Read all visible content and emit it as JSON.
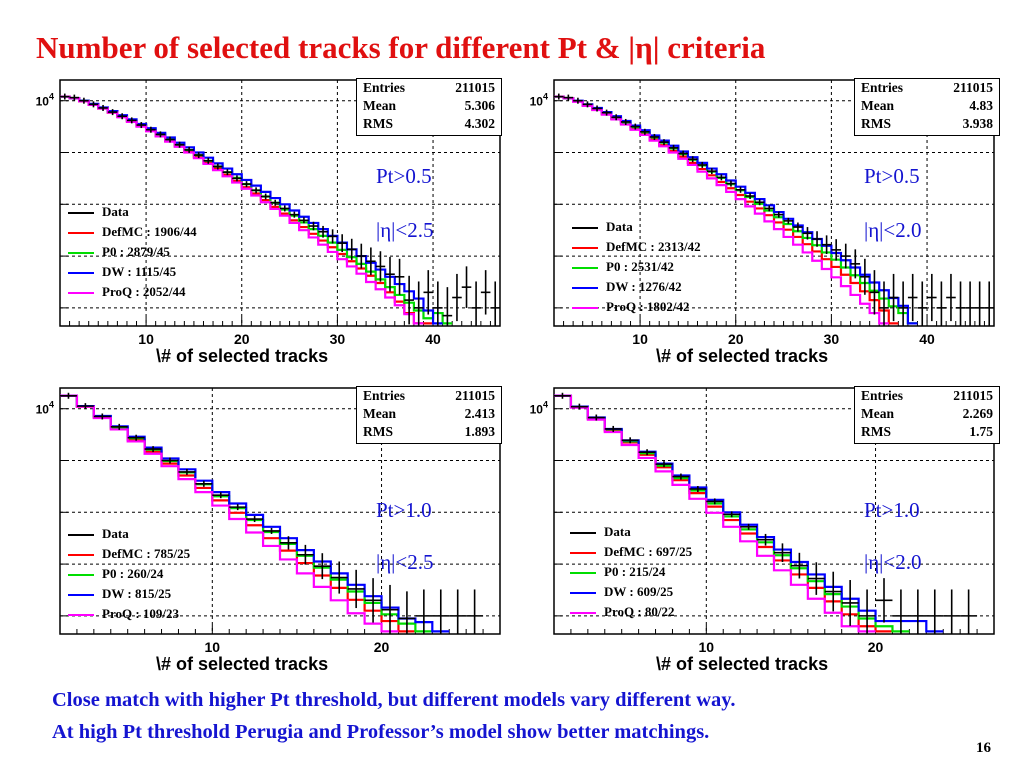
{
  "title": "Number of selected tracks for different Pt & |η| criteria",
  "footer_lines": [
    "Close match with higher Pt threshold, but different models vary different way.",
    "At high Pt threshold Perugia and Professor’s model show better matchings."
  ],
  "page_number": "16",
  "colors": {
    "Data": "#000000",
    "DefMC": "#ff0000",
    "P0": "#00dd00",
    "DW": "#0000ff",
    "ProQ": "#ff00ff",
    "cut_text": "#1414d0",
    "title": "#e01010"
  },
  "chart_data": [
    {
      "type": "step",
      "xlabel": "\\# of selected tracks",
      "ylabel_tick": "10",
      "ylabel_tick_exp": "4",
      "xlim": [
        1,
        47
      ],
      "xticks": [
        10,
        20,
        30,
        40
      ],
      "stats": {
        "entries_label": "Entries",
        "entries": "211015",
        "mean_label": "Mean",
        "mean": "5.306",
        "rms_label": "RMS",
        "rms": "4.302"
      },
      "cuts": [
        "Pt>0.5",
        "|η|<2.5"
      ],
      "legend": [
        {
          "name": "Data",
          "label": "Data"
        },
        {
          "name": "DefMC",
          "label": "DefMC : 1906/44"
        },
        {
          "name": "P0",
          "label": "P0 : 2879/45"
        },
        {
          "name": "DW",
          "label": "DW : 1115/45"
        },
        {
          "name": "ProQ",
          "label": "ProQ : 2052/44"
        }
      ],
      "data_points_log10": [
        4.08,
        4.06,
        4.0,
        3.93,
        3.86,
        3.78,
        3.7,
        3.62,
        3.53,
        3.44,
        3.35,
        3.25,
        3.15,
        3.05,
        2.95,
        2.84,
        2.73,
        2.62,
        2.5,
        2.39,
        2.27,
        2.15,
        2.03,
        1.92,
        1.8,
        1.69,
        1.58,
        1.47,
        1.38,
        1.25,
        1.13,
        1.0,
        0.9,
        0.8,
        0.65,
        0.6,
        0.15,
        0.0,
        0.3,
        0.0,
        -0.15,
        0.2,
        0.4,
        0.0,
        0.3,
        0.0
      ],
      "series_log10": {
        "DefMC": [
          4.08,
          4.05,
          3.99,
          3.92,
          3.85,
          3.77,
          3.69,
          3.6,
          3.51,
          3.42,
          3.32,
          3.22,
          3.12,
          3.02,
          2.91,
          2.8,
          2.69,
          2.57,
          2.45,
          2.33,
          2.21,
          2.08,
          1.95,
          1.82,
          1.69,
          1.56,
          1.43,
          1.3,
          1.17,
          1.04,
          0.9,
          0.76,
          0.62,
          0.48,
          0.3,
          0.12,
          -0.1,
          -0.3,
          -0.3
        ],
        "P0": [
          4.08,
          4.05,
          4.0,
          3.93,
          3.86,
          3.78,
          3.7,
          3.61,
          3.53,
          3.44,
          3.35,
          3.25,
          3.15,
          3.05,
          2.95,
          2.84,
          2.73,
          2.62,
          2.51,
          2.39,
          2.27,
          2.15,
          2.03,
          1.9,
          1.78,
          1.65,
          1.52,
          1.39,
          1.26,
          1.12,
          0.98,
          0.85,
          0.7,
          0.55,
          0.4,
          0.25,
          0.1,
          -0.05,
          -0.2,
          -0.1,
          -0.3
        ],
        "DW": [
          4.08,
          4.05,
          4.0,
          3.94,
          3.87,
          3.8,
          3.72,
          3.64,
          3.55,
          3.47,
          3.38,
          3.29,
          3.19,
          3.1,
          3.0,
          2.9,
          2.79,
          2.69,
          2.58,
          2.47,
          2.36,
          2.24,
          2.12,
          2.0,
          1.88,
          1.76,
          1.64,
          1.52,
          1.39,
          1.26,
          1.13,
          1.0,
          0.87,
          0.74,
          0.6,
          0.46,
          0.32,
          0.18,
          -0.05,
          -0.3
        ],
        "ProQ": [
          4.08,
          4.05,
          3.99,
          3.92,
          3.85,
          3.77,
          3.68,
          3.59,
          3.5,
          3.41,
          3.31,
          3.21,
          3.11,
          3.0,
          2.89,
          2.78,
          2.66,
          2.54,
          2.42,
          2.3,
          2.17,
          2.04,
          1.91,
          1.78,
          1.64,
          1.5,
          1.36,
          1.22,
          1.08,
          0.94,
          0.8,
          0.66,
          0.5,
          0.36,
          0.2,
          0.05,
          -0.12,
          -0.3
        ]
      }
    },
    {
      "type": "step",
      "xlabel": "\\# of selected tracks",
      "ylabel_tick": "10",
      "ylabel_tick_exp": "4",
      "xlim": [
        1,
        47
      ],
      "xticks": [
        10,
        20,
        30,
        40
      ],
      "stats": {
        "entries_label": "Entries",
        "entries": "211015",
        "mean_label": "Mean",
        "mean": "4.83",
        "rms_label": "RMS",
        "rms": "3.938"
      },
      "cuts": [
        "Pt>0.5",
        "|η|<2.0"
      ],
      "legend": [
        {
          "name": "Data",
          "label": "Data"
        },
        {
          "name": "DefMC",
          "label": "DefMC : 2313/42"
        },
        {
          "name": "P0",
          "label": "P0 : 2531/42"
        },
        {
          "name": "DW",
          "label": "DW : 1276/42"
        },
        {
          "name": "ProQ",
          "label": "ProQ : 1802/42"
        }
      ],
      "data_points_log10": [
        4.08,
        4.06,
        4.0,
        3.93,
        3.85,
        3.77,
        3.68,
        3.59,
        3.5,
        3.4,
        3.3,
        3.2,
        3.09,
        2.98,
        2.87,
        2.76,
        2.64,
        2.52,
        2.4,
        2.28,
        2.16,
        2.04,
        1.92,
        1.8,
        1.68,
        1.56,
        1.44,
        1.33,
        1.22,
        1.12,
        1.0,
        0.85,
        0.6,
        0.3,
        0.0,
        0.2,
        0.0,
        0.2,
        0.0,
        0.2,
        0.0,
        0.2,
        0.0,
        0.0,
        0.0,
        0.0
      ],
      "series_log10": {
        "DefMC": [
          4.08,
          4.05,
          3.99,
          3.91,
          3.83,
          3.74,
          3.65,
          3.56,
          3.46,
          3.36,
          3.25,
          3.14,
          3.03,
          2.92,
          2.8,
          2.68,
          2.56,
          2.43,
          2.31,
          2.18,
          2.05,
          1.92,
          1.79,
          1.65,
          1.51,
          1.37,
          1.23,
          1.09,
          0.94,
          0.79,
          0.64,
          0.48,
          0.32,
          0.15,
          -0.05,
          -0.3
        ],
        "P0": [
          4.08,
          4.05,
          3.99,
          3.92,
          3.84,
          3.76,
          3.67,
          3.58,
          3.49,
          3.39,
          3.29,
          3.19,
          3.08,
          2.97,
          2.86,
          2.75,
          2.63,
          2.51,
          2.39,
          2.27,
          2.14,
          2.01,
          1.88,
          1.75,
          1.62,
          1.48,
          1.35,
          1.21,
          1.07,
          0.93,
          0.78,
          0.63,
          0.48,
          0.33,
          0.18,
          0.03,
          -0.1,
          -0.3
        ],
        "DW": [
          4.08,
          4.05,
          4.0,
          3.93,
          3.86,
          3.78,
          3.7,
          3.61,
          3.52,
          3.43,
          3.33,
          3.23,
          3.13,
          3.02,
          2.91,
          2.8,
          2.69,
          2.58,
          2.46,
          2.34,
          2.22,
          2.1,
          1.98,
          1.85,
          1.72,
          1.59,
          1.46,
          1.33,
          1.2,
          1.06,
          0.92,
          0.78,
          0.64,
          0.49,
          0.34,
          0.19,
          0.04,
          -0.3
        ],
        "ProQ": [
          4.08,
          4.05,
          3.98,
          3.9,
          3.82,
          3.73,
          3.64,
          3.54,
          3.44,
          3.34,
          3.23,
          3.12,
          3.0,
          2.88,
          2.76,
          2.63,
          2.5,
          2.37,
          2.24,
          2.1,
          1.96,
          1.82,
          1.67,
          1.52,
          1.37,
          1.22,
          1.07,
          0.91,
          0.75,
          0.59,
          0.42,
          0.25,
          0.08,
          -0.1,
          -0.3
        ]
      }
    },
    {
      "type": "step",
      "xlabel": "\\# of selected tracks",
      "ylabel_tick": "10",
      "ylabel_tick_exp": "4",
      "xlim": [
        1,
        27
      ],
      "xticks": [
        10,
        20
      ],
      "stats": {
        "entries_label": "Entries",
        "entries": "211015",
        "mean_label": "Mean",
        "mean": "2.413",
        "rms_label": "RMS",
        "rms": "1.893"
      },
      "cuts": [
        "Pt>1.0",
        "|η|<2.5"
      ],
      "legend": [
        {
          "name": "Data",
          "label": "Data"
        },
        {
          "name": "DefMC",
          "label": "DefMC : 785/25"
        },
        {
          "name": "P0",
          "label": "P0 : 260/24"
        },
        {
          "name": "DW",
          "label": "DW : 815/25"
        },
        {
          "name": "ProQ",
          "label": "ProQ : 109/23"
        }
      ],
      "data_points_log10": [
        4.25,
        4.05,
        3.85,
        3.65,
        3.44,
        3.22,
        3.0,
        2.78,
        2.55,
        2.33,
        2.1,
        1.87,
        1.64,
        1.41,
        1.18,
        0.96,
        0.74,
        0.52,
        0.3,
        0.12,
        -0.05,
        0.0,
        0.0,
        0.0,
        0.0
      ],
      "series_log10": {
        "DefMC": [
          4.25,
          4.04,
          3.83,
          3.62,
          3.4,
          3.17,
          2.94,
          2.71,
          2.47,
          2.23,
          1.99,
          1.75,
          1.5,
          1.26,
          1.02,
          0.78,
          0.54,
          0.31,
          0.1,
          -0.1,
          -0.3
        ],
        "P0": [
          4.25,
          4.05,
          3.85,
          3.64,
          3.43,
          3.21,
          2.99,
          2.77,
          2.54,
          2.31,
          2.08,
          1.85,
          1.62,
          1.39,
          1.16,
          0.93,
          0.7,
          0.47,
          0.25,
          0.03,
          -0.15,
          -0.3
        ],
        "DW": [
          4.25,
          4.05,
          3.86,
          3.66,
          3.46,
          3.25,
          3.04,
          2.83,
          2.61,
          2.39,
          2.17,
          1.95,
          1.72,
          1.5,
          1.27,
          1.05,
          0.82,
          0.6,
          0.38,
          0.16,
          -0.05,
          -0.12,
          -0.3
        ],
        "ProQ": [
          4.25,
          4.04,
          3.82,
          3.6,
          3.37,
          3.13,
          2.89,
          2.64,
          2.39,
          2.13,
          1.87,
          1.61,
          1.35,
          1.09,
          0.82,
          0.56,
          0.3,
          0.05,
          -0.15,
          -0.3
        ]
      }
    },
    {
      "type": "step",
      "xlabel": "\\# of selected tracks",
      "ylabel_tick": "10",
      "ylabel_tick_exp": "4",
      "xlim": [
        1,
        27
      ],
      "xticks": [
        10,
        20
      ],
      "stats": {
        "entries_label": "Entries",
        "entries": "211015",
        "mean_label": "Mean",
        "mean": "2.269",
        "rms_label": "RMS",
        "rms": "1.75"
      },
      "cuts": [
        "Pt>1.0",
        "|η|<2.0"
      ],
      "legend": [
        {
          "name": "Data",
          "label": "Data"
        },
        {
          "name": "DefMC",
          "label": "DefMC : 697/25"
        },
        {
          "name": "P0",
          "label": "P0 : 215/24"
        },
        {
          "name": "DW",
          "label": "DW : 609/25"
        },
        {
          "name": "ProQ",
          "label": "ProQ : 80/22"
        }
      ],
      "data_points_log10": [
        4.25,
        4.04,
        3.83,
        3.61,
        3.39,
        3.16,
        2.93,
        2.69,
        2.45,
        2.21,
        1.96,
        1.72,
        1.47,
        1.22,
        0.97,
        0.72,
        0.47,
        0.25,
        0.0,
        0.3,
        0.0,
        0.0,
        0.0,
        0.0,
        0.0
      ],
      "series_log10": {
        "DefMC": [
          4.25,
          4.03,
          3.81,
          3.58,
          3.35,
          3.11,
          2.87,
          2.62,
          2.37,
          2.11,
          1.85,
          1.59,
          1.33,
          1.07,
          0.8,
          0.54,
          0.28,
          0.03,
          -0.2,
          -0.3
        ],
        "P0": [
          4.25,
          4.04,
          3.82,
          3.6,
          3.37,
          3.14,
          2.9,
          2.66,
          2.42,
          2.17,
          1.92,
          1.67,
          1.42,
          1.17,
          0.92,
          0.67,
          0.42,
          0.18,
          -0.05,
          -0.2,
          -0.3
        ],
        "DW": [
          4.25,
          4.04,
          3.83,
          3.61,
          3.39,
          3.17,
          2.94,
          2.71,
          2.48,
          2.24,
          2.0,
          1.76,
          1.52,
          1.28,
          1.04,
          0.8,
          0.56,
          0.33,
          0.1,
          -0.1,
          -0.1,
          -0.1,
          -0.3
        ],
        "ProQ": [
          4.25,
          4.02,
          3.79,
          3.55,
          3.3,
          3.05,
          2.79,
          2.53,
          2.26,
          1.99,
          1.72,
          1.44,
          1.16,
          0.88,
          0.6,
          0.33,
          0.06,
          -0.2,
          -0.3
        ]
      }
    }
  ]
}
